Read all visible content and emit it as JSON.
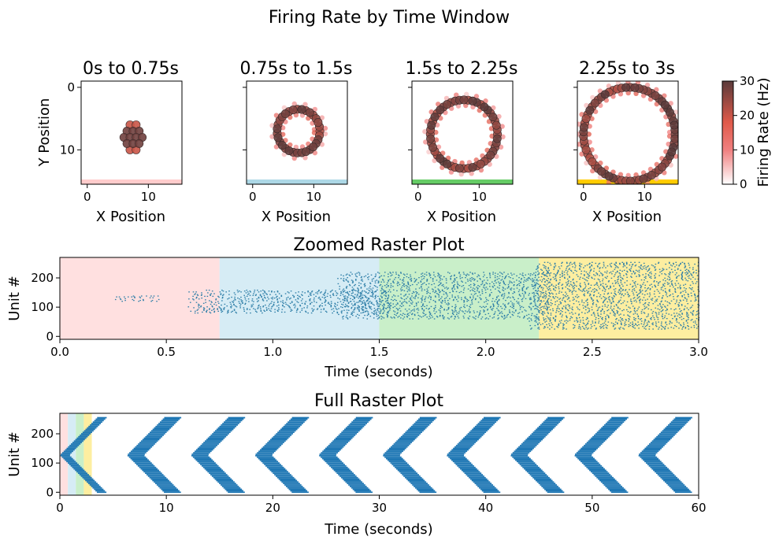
{
  "figure_title": "Firing Rate by Time Window",
  "chart_data": [
    {
      "type": "scatter",
      "panel": "spatial-window-1",
      "title": "0s to 0.75s",
      "xlabel": "X Position",
      "ylabel": "Y Position",
      "xlim": [
        -1,
        15.5
      ],
      "ylim": [
        15.5,
        -1
      ],
      "xticks": [
        0,
        10
      ],
      "yticks": [
        0,
        10
      ],
      "window_color": "#ffcccc",
      "ring_center": [
        7.5,
        7.5
      ],
      "ring_radius": 1.0,
      "points": [
        {
          "x": 6.5,
          "y": 7.0,
          "rate": 28
        },
        {
          "x": 7.5,
          "y": 7.0,
          "rate": 28
        },
        {
          "x": 8.5,
          "y": 7.0,
          "rate": 28
        },
        {
          "x": 6.0,
          "y": 8.0,
          "rate": 28
        },
        {
          "x": 7.0,
          "y": 8.0,
          "rate": 28
        },
        {
          "x": 8.0,
          "y": 8.0,
          "rate": 28
        },
        {
          "x": 9.0,
          "y": 8.0,
          "rate": 28
        },
        {
          "x": 6.5,
          "y": 9.0,
          "rate": 28
        },
        {
          "x": 7.5,
          "y": 9.0,
          "rate": 28
        },
        {
          "x": 8.5,
          "y": 9.0,
          "rate": 28
        },
        {
          "x": 7.0,
          "y": 6.0,
          "rate": 20
        },
        {
          "x": 8.0,
          "y": 6.0,
          "rate": 20
        },
        {
          "x": 7.0,
          "y": 10.0,
          "rate": 20
        },
        {
          "x": 8.0,
          "y": 10.0,
          "rate": 20
        }
      ]
    },
    {
      "type": "scatter",
      "panel": "spatial-window-2",
      "title": "0.75s to 1.5s",
      "xlabel": "X Position",
      "ylabel": "",
      "xlim": [
        -1,
        15.5
      ],
      "ylim": [
        15.5,
        -1
      ],
      "xticks": [
        0,
        10
      ],
      "yticks": [
        0,
        10
      ],
      "window_color": "#add8e6",
      "ring_center": [
        7.5,
        7.0
      ],
      "ring_radius": 3.5
    },
    {
      "type": "scatter",
      "panel": "spatial-window-3",
      "title": "1.5s to 2.25s",
      "xlabel": "X Position",
      "ylabel": "",
      "xlim": [
        -1,
        15.5
      ],
      "ylim": [
        15.5,
        -1
      ],
      "xticks": [
        0,
        10
      ],
      "yticks": [
        0,
        10
      ],
      "window_color": "#66cc66",
      "ring_center": [
        7.5,
        7.5
      ],
      "ring_radius": 5.5
    },
    {
      "type": "scatter",
      "panel": "spatial-window-4",
      "title": "2.25s to 3s",
      "xlabel": "X Position",
      "ylabel": "",
      "xlim": [
        -1,
        15.5
      ],
      "ylim": [
        15.5,
        -1
      ],
      "xticks": [
        0,
        10
      ],
      "yticks": [
        0,
        10
      ],
      "window_color": "#ffcc00",
      "ring_center": [
        7.5,
        7.5
      ],
      "ring_radius": 7.5
    },
    {
      "type": "colorbar",
      "panel": "firing-rate-colorbar",
      "label": "Firing Rate (Hz)",
      "range": [
        0,
        30
      ],
      "ticks": [
        0,
        10,
        20,
        30
      ],
      "colors": [
        "#ffffff",
        "#f08080",
        "#e05a4a",
        "#5a3a3a"
      ]
    },
    {
      "type": "raster",
      "panel": "zoomed-raster",
      "title": "Zoomed Raster Plot",
      "xlabel": "Time (seconds)",
      "ylabel": "Unit #",
      "xlim": [
        0,
        3.0
      ],
      "ylim": [
        -10,
        270
      ],
      "xticks": [
        0.0,
        0.5,
        1.0,
        1.5,
        2.0,
        2.5,
        3.0
      ],
      "yticks": [
        0,
        100,
        200
      ],
      "spike_color": "#2f7fa8",
      "windows": [
        {
          "start": 0,
          "end": 0.75,
          "color": "#ffe0e0"
        },
        {
          "start": 0.75,
          "end": 1.5,
          "color": "#d6ecf5"
        },
        {
          "start": 1.5,
          "end": 2.25,
          "color": "#c9efc9"
        },
        {
          "start": 2.25,
          "end": 3.0,
          "color": "#fdeea0"
        }
      ],
      "unit_bands": [
        {
          "start": 0.25,
          "end": 0.47,
          "units": [
            120,
            140
          ]
        },
        {
          "start": 0.6,
          "end": 1.55,
          "units": [
            80,
            160
          ]
        },
        {
          "start": 1.3,
          "end": 2.3,
          "units": [
            60,
            220
          ]
        },
        {
          "start": 2.2,
          "end": 3.0,
          "units": [
            25,
            255
          ]
        }
      ]
    },
    {
      "type": "raster",
      "panel": "full-raster",
      "title": "Full Raster Plot",
      "xlabel": "Time (seconds)",
      "ylabel": "Unit #",
      "xlim": [
        0,
        60
      ],
      "ylim": [
        -10,
        270
      ],
      "xticks": [
        0,
        10,
        20,
        30,
        40,
        50,
        60
      ],
      "yticks": [
        0,
        100,
        200
      ],
      "spike_color": "#1f77b4",
      "windows": [
        {
          "start": 0,
          "end": 0.75,
          "color": "#ffe0e0"
        },
        {
          "start": 0.75,
          "end": 1.5,
          "color": "#d6ecf5"
        },
        {
          "start": 1.5,
          "end": 2.25,
          "color": "#c9efc9"
        },
        {
          "start": 2.25,
          "end": 3.0,
          "color": "#fdeea0"
        }
      ],
      "wave_period_s": 6,
      "wave_duration_s": 3.5,
      "unit_max": 255
    }
  ]
}
